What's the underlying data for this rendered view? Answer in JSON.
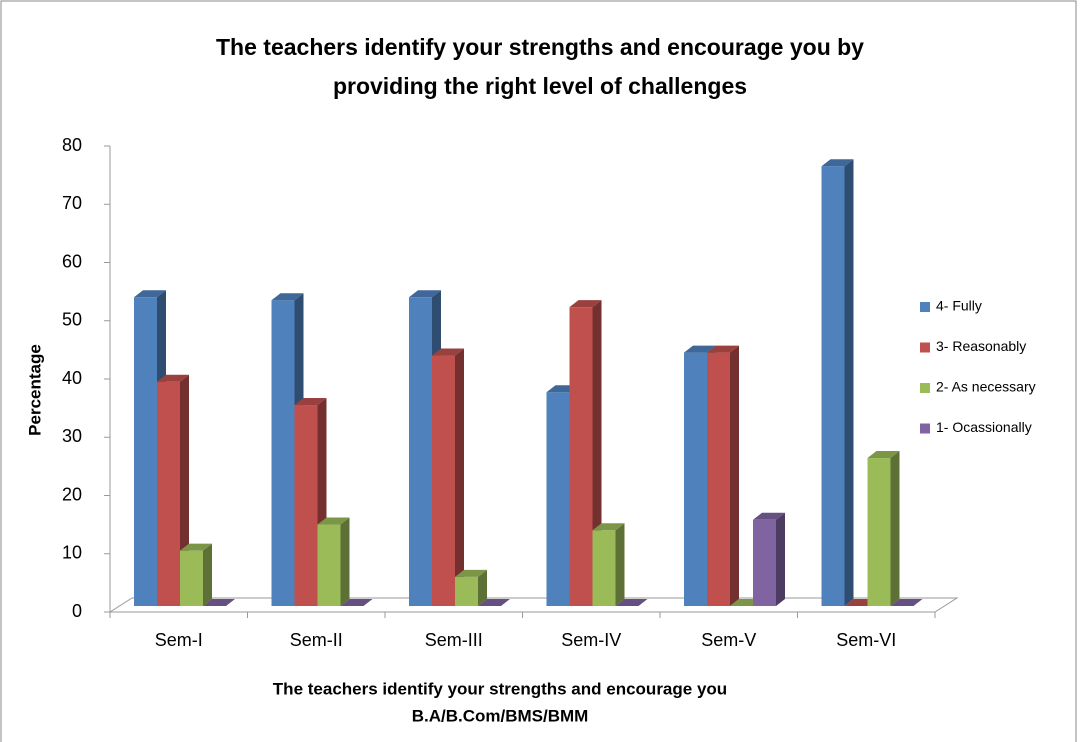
{
  "chart_data": {
    "type": "bar3d",
    "title": [
      "The teachers identify your strengths and encourage you by",
      "providing the right level of challenges"
    ],
    "x_label": [
      "The teachers identify your strengths and encourage you",
      "B.A/B.Com/BMS/BMM"
    ],
    "y_label": "Percentage",
    "categories": [
      "Sem-I",
      "Sem-II",
      "Sem-III",
      "Sem-IV",
      "Sem-V",
      "Sem-VI"
    ],
    "series": [
      {
        "name": "4- Fully",
        "color": "#4f81bd",
        "values": [
          53,
          52.5,
          53,
          36.7,
          43.5,
          75.5
        ]
      },
      {
        "name": "3- Reasonably",
        "color": "#c0504d",
        "values": [
          38.5,
          34.5,
          43,
          51.3,
          43.5,
          0
        ]
      },
      {
        "name": "2- As necessary",
        "color": "#9bbb59",
        "values": [
          9.5,
          14,
          5,
          13,
          0,
          25.4
        ]
      },
      {
        "name": "1- Ocassionally",
        "color": "#8064a2",
        "values": [
          0,
          0,
          0,
          0,
          14.8,
          0
        ]
      }
    ],
    "ylim": [
      0,
      80
    ],
    "yticks": [
      0,
      10,
      20,
      30,
      40,
      50,
      60,
      70,
      80
    ],
    "legend": "right"
  }
}
